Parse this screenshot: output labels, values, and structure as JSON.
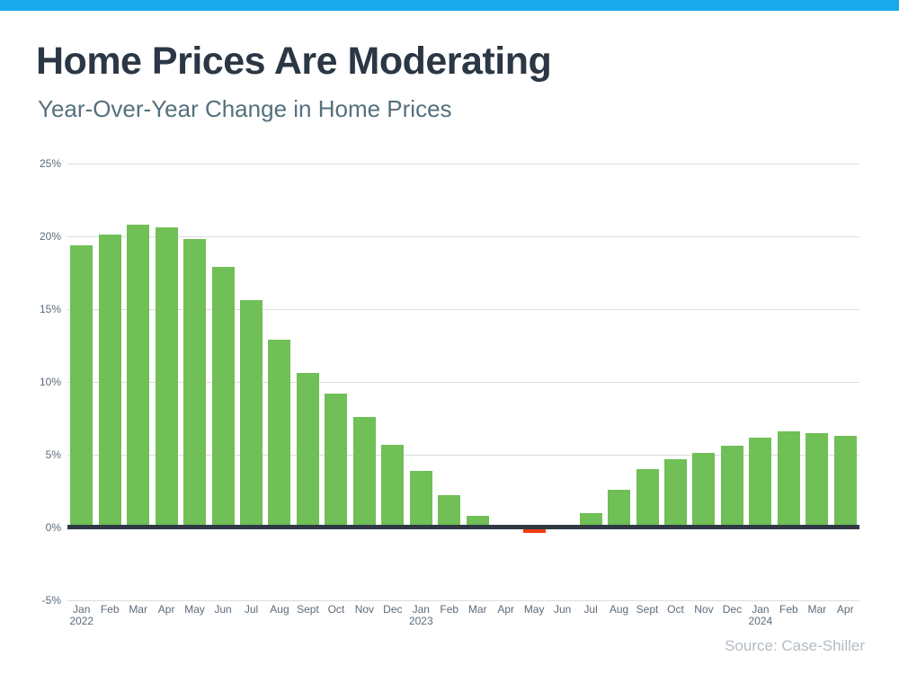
{
  "page": {
    "title": "Home Prices Are Moderating",
    "subtitle": "Year-Over-Year Change in Home Prices",
    "source": "Source: Case-Shiller"
  },
  "colors": {
    "top_strip": "#18A9ED",
    "title": "#2B3744",
    "subtitle": "#54707E",
    "bar_positive": "#70BF57",
    "bar_negative": "#F23B10",
    "axis_line": "#2E3944",
    "gridline": "#DDDDDD",
    "tick_label": "#5C6B7A",
    "source_text": "#B4BCC4"
  },
  "chart_data": {
    "type": "bar",
    "title": "Home Prices Are Moderating",
    "subtitle": "Year-Over-Year Change in Home Prices",
    "series_name": "Year-over-year % change in home prices",
    "unit": "%",
    "ylim": [
      -5,
      25
    ],
    "yticks": [
      25,
      20,
      15,
      10,
      5,
      0,
      -5
    ],
    "ytick_labels": [
      "25%",
      "20%",
      "15%",
      "10%",
      "5%",
      "0%",
      "-5%"
    ],
    "grid": true,
    "legend": false,
    "categories": [
      "Jan 2022",
      "Feb",
      "Mar",
      "Apr",
      "May",
      "Jun",
      "Jul",
      "Aug",
      "Sept",
      "Oct",
      "Nov",
      "Dec",
      "Jan 2023",
      "Feb",
      "Mar",
      "Apr",
      "May",
      "Jun",
      "Jul",
      "Aug",
      "Sept",
      "Oct",
      "Nov",
      "Dec",
      "Jan 2024",
      "Feb",
      "Mar",
      "Apr"
    ],
    "values": [
      19.4,
      20.1,
      20.8,
      20.6,
      19.8,
      17.9,
      15.6,
      12.9,
      10.6,
      9.2,
      7.6,
      5.7,
      3.9,
      2.2,
      0.8,
      0.0,
      -0.4,
      0.0,
      1.0,
      2.6,
      4.0,
      4.7,
      5.1,
      5.6,
      6.2,
      6.6,
      6.5,
      6.3
    ],
    "points": [
      {
        "month": "Jan",
        "year": "2022",
        "value": 19.4
      },
      {
        "month": "Feb",
        "year": "",
        "value": 20.1
      },
      {
        "month": "Mar",
        "year": "",
        "value": 20.8
      },
      {
        "month": "Apr",
        "year": "",
        "value": 20.6
      },
      {
        "month": "May",
        "year": "",
        "value": 19.8
      },
      {
        "month": "Jun",
        "year": "",
        "value": 17.9
      },
      {
        "month": "Jul",
        "year": "",
        "value": 15.6
      },
      {
        "month": "Aug",
        "year": "",
        "value": 12.9
      },
      {
        "month": "Sept",
        "year": "",
        "value": 10.6
      },
      {
        "month": "Oct",
        "year": "",
        "value": 9.2
      },
      {
        "month": "Nov",
        "year": "",
        "value": 7.6
      },
      {
        "month": "Dec",
        "year": "",
        "value": 5.7
      },
      {
        "month": "Jan",
        "year": "2023",
        "value": 3.9
      },
      {
        "month": "Feb",
        "year": "",
        "value": 2.2
      },
      {
        "month": "Mar",
        "year": "",
        "value": 0.8
      },
      {
        "month": "Apr",
        "year": "",
        "value": 0.0
      },
      {
        "month": "May",
        "year": "",
        "value": -0.4
      },
      {
        "month": "Jun",
        "year": "",
        "value": 0.0
      },
      {
        "month": "Jul",
        "year": "",
        "value": 1.0
      },
      {
        "month": "Aug",
        "year": "",
        "value": 2.6
      },
      {
        "month": "Sept",
        "year": "",
        "value": 4.0
      },
      {
        "month": "Oct",
        "year": "",
        "value": 4.7
      },
      {
        "month": "Nov",
        "year": "",
        "value": 5.1
      },
      {
        "month": "Dec",
        "year": "",
        "value": 5.6
      },
      {
        "month": "Jan",
        "year": "2024",
        "value": 6.2
      },
      {
        "month": "Feb",
        "year": "",
        "value": 6.6
      },
      {
        "month": "Mar",
        "year": "",
        "value": 6.5
      },
      {
        "month": "Apr",
        "year": "",
        "value": 6.3
      }
    ],
    "source": "Source: Case-Shiller"
  }
}
